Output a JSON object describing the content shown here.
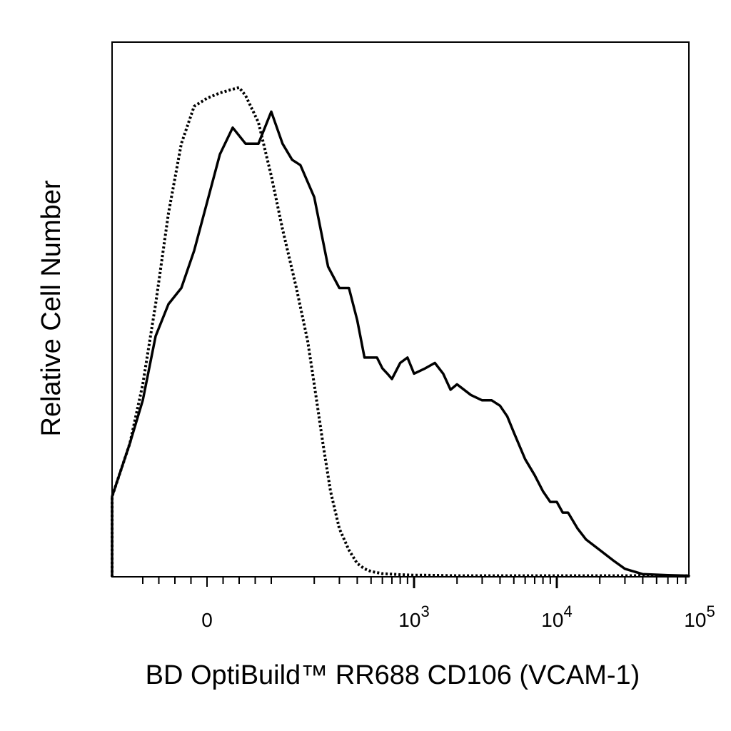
{
  "chart_data": {
    "type": "line",
    "title": "",
    "xlabel": "BD OptiBuild™ RR688 CD106 (VCAM-1)",
    "ylabel": "Relative Cell Number",
    "x_scale": "biexponential",
    "xlim": [
      -300,
      200000
    ],
    "ylim": [
      0,
      100
    ],
    "grid": false,
    "legend": "none",
    "x_ticks": [
      {
        "value": 0,
        "base": "0",
        "exp": ""
      },
      {
        "value": 1000,
        "base": "10",
        "exp": "3"
      },
      {
        "value": 10000,
        "base": "10",
        "exp": "4"
      },
      {
        "value": 100000,
        "base": "10",
        "exp": "5"
      }
    ],
    "series": [
      {
        "style": "dotted",
        "color": "#000000",
        "x": [
          -300,
          -255,
          -225,
          -200,
          -175,
          -150,
          -120,
          -100,
          -80,
          -60,
          -40,
          -20,
          0,
          20,
          40,
          50,
          60,
          80,
          100,
          120,
          150,
          180,
          200,
          230,
          260,
          300,
          350,
          400,
          450,
          500,
          600,
          700,
          800,
          1000,
          1200,
          2000,
          5000,
          10000,
          20000,
          50000,
          100000,
          200000
        ],
        "y": [
          0,
          0.5,
          1.5,
          4,
          8,
          15,
          25,
          36,
          51,
          68,
          81,
          88,
          89.5,
          90.5,
          91.2,
          91.5,
          90,
          85,
          75,
          65,
          54,
          44,
          36,
          25,
          16,
          9,
          5,
          2.5,
          1.5,
          1,
          0.6,
          0.5,
          0.4,
          0.3,
          0.3,
          0.2,
          0.2,
          0.2,
          0.2,
          0.2,
          0.2,
          0.3
        ]
      },
      {
        "style": "solid",
        "color": "#000000",
        "x": [
          -300,
          -255,
          -225,
          -200,
          -175,
          -150,
          -120,
          -100,
          -80,
          -60,
          -40,
          -20,
          0,
          20,
          40,
          60,
          80,
          100,
          120,
          140,
          160,
          200,
          250,
          300,
          350,
          400,
          450,
          500,
          550,
          600,
          650,
          700,
          800,
          900,
          1000,
          1200,
          1400,
          1600,
          1800,
          2000,
          2500,
          3000,
          3500,
          4000,
          4500,
          5000,
          6000,
          7000,
          8000,
          9000,
          10000,
          11000,
          12000,
          14000,
          16000,
          20000,
          25000,
          30000,
          40000,
          60000,
          100000,
          150000,
          200000
        ],
        "y": [
          0,
          0.5,
          1.5,
          3.5,
          8,
          15,
          25,
          33,
          45,
          51,
          54,
          61,
          70,
          79,
          84,
          81,
          81,
          87,
          81,
          78,
          77,
          71,
          58,
          54,
          54,
          48,
          41,
          41,
          41,
          39,
          38,
          37,
          40,
          41,
          38,
          39,
          40,
          38,
          35,
          36,
          34,
          33,
          33,
          32,
          30,
          27,
          22,
          19,
          16,
          14,
          14,
          12,
          12,
          9,
          7,
          5,
          3,
          1.5,
          0.5,
          0.3,
          0.2,
          0.2,
          0.3
        ]
      }
    ]
  }
}
